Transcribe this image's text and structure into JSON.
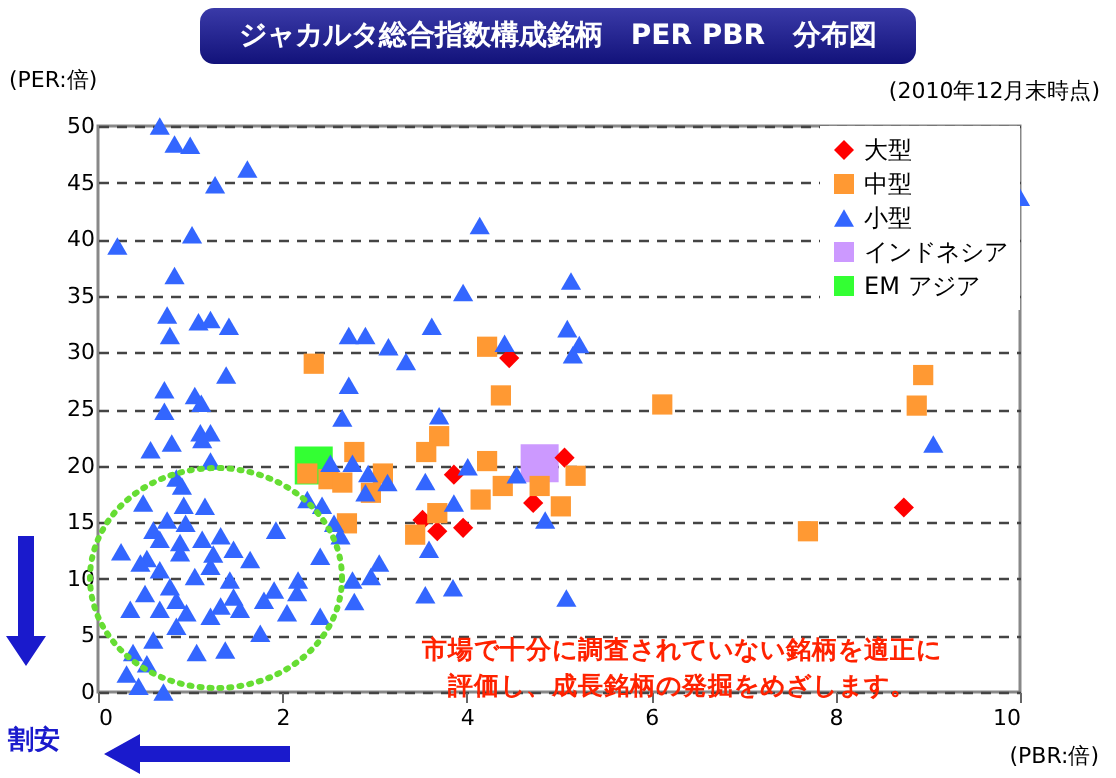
{
  "chart_data": {
    "type": "scatter",
    "title": "ジャカルタ総合指数構成銘柄　PER PBR　分布図",
    "subtitle": "(2010年12月末時点)",
    "xlabel": "(PBR:倍)",
    "ylabel": "(PER:倍)",
    "annotations": [
      "市場で十分に調査されていない銘柄を適正に評価し、成長銘柄の発掘をめざします。",
      "割安"
    ],
    "xlim": [
      0,
      10
    ],
    "xticks": [
      0,
      2,
      4,
      6,
      8,
      10
    ],
    "ylim": [
      0,
      50
    ],
    "yticks": [
      0,
      5,
      10,
      15,
      20,
      25,
      30,
      35,
      40,
      45,
      50
    ],
    "grid": "y",
    "legend": "top right",
    "series": [
      {
        "name": "大型",
        "color": "#ff0000",
        "marker": "diamond",
        "x": [
          4.46,
          3.86,
          3.52,
          3.68,
          3.96,
          4.72,
          5.06,
          8.74
        ],
        "values": [
          29.5,
          19.2,
          15.2,
          14.2,
          14.5,
          16.7,
          20.7,
          16.3
        ]
      },
      {
        "name": "中型",
        "color": "#ff9933",
        "marker": "square",
        "x": [
          2.34,
          2.27,
          2.5,
          2.65,
          2.78,
          2.7,
          2.96,
          4.22,
          4.37,
          6.12,
          3.7,
          3.56,
          4.22,
          4.39,
          4.79,
          5.18,
          4.15,
          5.02,
          3.68,
          3.44,
          3.09,
          8.95,
          8.88,
          7.7
        ],
        "values": [
          29.0,
          19.3,
          18.8,
          18.5,
          21.2,
          14.9,
          17.6,
          30.5,
          26.2,
          25.4,
          22.6,
          21.2,
          20.4,
          18.2,
          18.2,
          19.1,
          17.0,
          16.4,
          15.8,
          13.9,
          19.3,
          28.0,
          25.3,
          14.2
        ]
      },
      {
        "name": "小型",
        "color": "#3366ff",
        "marker": "triangle",
        "x": [
          0.67,
          0.83,
          1.0,
          1.62,
          1.27,
          1.02,
          0.21,
          0.83,
          0.75,
          0.78,
          1.09,
          1.22,
          1.42,
          2.72,
          2.9,
          1.39,
          2.72,
          0.72,
          1.05,
          1.12,
          0.72,
          2.65,
          1.11,
          1.22,
          1.13,
          0.57,
          0.8,
          1.22,
          2.52,
          2.76,
          2.93,
          2.9,
          0.85,
          0.91,
          0.93,
          0.49,
          2.27,
          2.43,
          1.16,
          0.75,
          0.95,
          0.6,
          2.56,
          2.63,
          1.93,
          1.13,
          1.33,
          0.67,
          0.89,
          0.25,
          0.53,
          0.89,
          1.25,
          1.47,
          1.65,
          0.67,
          0.46,
          1.22,
          2.41,
          1.05,
          1.43,
          0.78,
          0.51,
          2.17,
          2.76,
          2.96,
          1.91,
          2.16,
          1.47,
          1.8,
          0.85,
          0.35,
          0.67,
          1.33,
          1.54,
          1.22,
          0.96,
          2.78,
          2.41,
          2.05,
          0.85,
          1.76,
          0.6,
          1.38,
          1.07,
          0.38,
          0.53,
          0.31,
          0.44,
          0.71,
          4.14,
          3.96,
          5.13,
          3.62,
          3.15,
          3.34,
          5.09,
          5.22,
          5.15,
          4.41,
          3.7,
          4.01,
          3.55,
          3.86,
          4.54,
          4.85,
          3.59,
          3.05,
          3.14,
          3.55,
          3.85,
          5.08,
          10.0,
          9.06
        ],
        "values": [
          50.0,
          48.4,
          48.3,
          46.2,
          44.8,
          40.4,
          39.4,
          36.8,
          33.3,
          31.5,
          32.7,
          32.9,
          32.3,
          31.5,
          31.5,
          28.0,
          27.1,
          26.7,
          26.2,
          25.5,
          24.8,
          24.2,
          22.9,
          22.9,
          22.3,
          21.4,
          22.0,
          20.4,
          20.2,
          20.2,
          19.3,
          17.6,
          18.9,
          18.2,
          16.5,
          16.7,
          17.0,
          16.5,
          16.4,
          15.2,
          14.9,
          14.3,
          14.9,
          13.8,
          14.3,
          13.5,
          13.8,
          13.5,
          13.2,
          12.4,
          11.8,
          12.3,
          12.2,
          12.6,
          11.7,
          10.8,
          11.4,
          11.1,
          12.0,
          10.2,
          9.9,
          9.3,
          8.7,
          9.9,
          9.9,
          10.2,
          9.0,
          8.8,
          8.4,
          8.1,
          8.1,
          7.3,
          7.3,
          7.6,
          7.3,
          6.7,
          7.0,
          8.0,
          6.7,
          7.0,
          5.8,
          5.2,
          4.6,
          3.7,
          3.5,
          3.5,
          2.5,
          1.6,
          0.5,
          0.0,
          41.2,
          35.3,
          36.3,
          32.3,
          30.5,
          29.2,
          32.1,
          30.7,
          29.8,
          30.8,
          24.4,
          19.9,
          18.6,
          16.7,
          19.2,
          15.2,
          12.6,
          11.4,
          18.5,
          8.6,
          9.2,
          8.3,
          43.7,
          21.9
        ]
      },
      {
        "name": "インドネシア",
        "color": "#cc99ff",
        "marker": "square",
        "x": [
          4.79
        ],
        "values": [
          20.2
        ]
      },
      {
        "name": "EM アジア",
        "color": "#33ff33",
        "marker": "square",
        "x": [
          2.34
        ],
        "values": [
          20.0
        ]
      }
    ]
  }
}
